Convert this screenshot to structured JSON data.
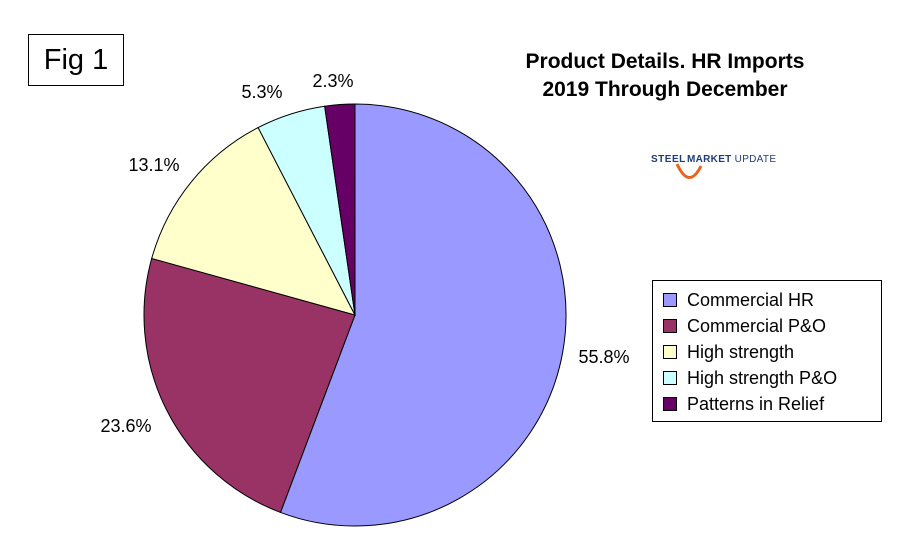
{
  "figure_label": "Fig 1",
  "logo": {
    "word1": "STEEL",
    "word2": "MARKET",
    "word3": "UPDATE"
  },
  "chart_data": {
    "type": "pie",
    "title": "Product Details. HR Imports",
    "subtitle": "2019 Through December",
    "categories": [
      "Commercial HR",
      "Commercial P&O",
      "High strength",
      "High strength P&O",
      "Patterns in Relief"
    ],
    "values": [
      55.8,
      23.6,
      13.1,
      5.3,
      2.3
    ],
    "labels": [
      "55.8%",
      "23.6%",
      "13.1%",
      "5.3%",
      "2.3%"
    ],
    "colors": [
      "#9999ff",
      "#993366",
      "#ffffcc",
      "#ccffff",
      "#660066"
    ],
    "legend_position": "right"
  }
}
